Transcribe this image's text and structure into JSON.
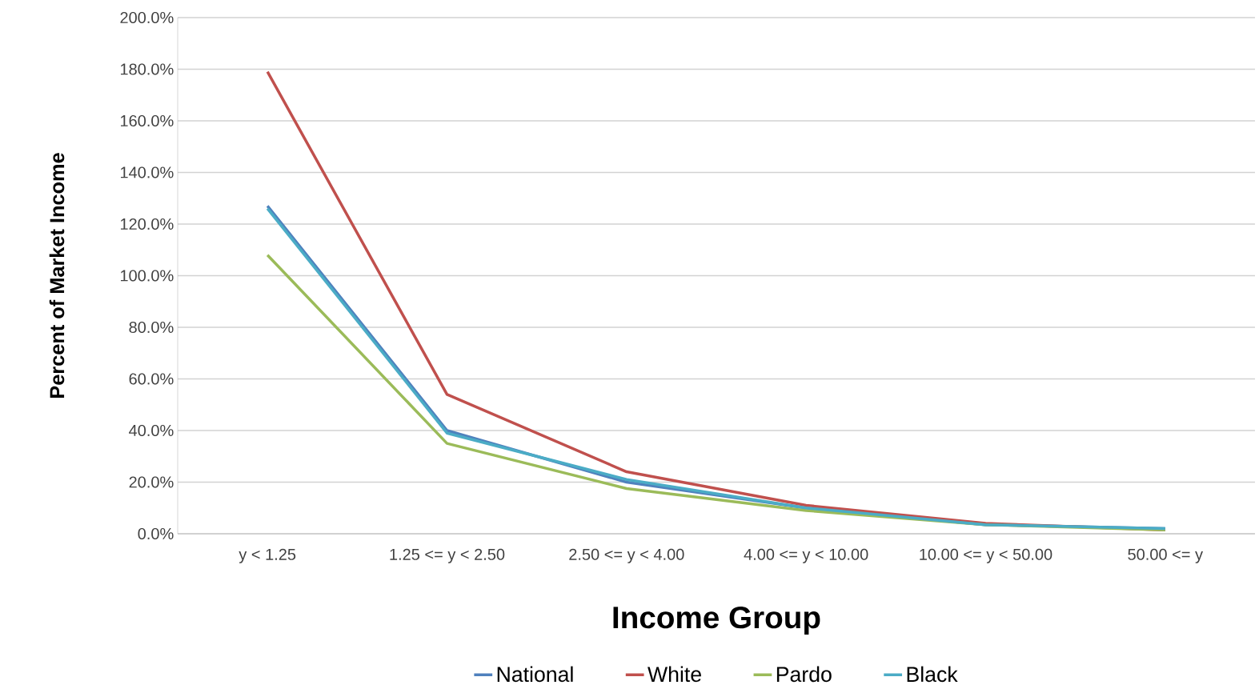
{
  "chart_data": {
    "type": "line",
    "xlabel": "Income Group",
    "ylabel": "Percent of Market Income",
    "categories": [
      "y < 1.25",
      "1.25 <= y < 2.50",
      "2.50 <= y < 4.00",
      "4.00 <= y < 10.00",
      "10.00 <= y < 50.00",
      "50.00 <= y"
    ],
    "series": [
      {
        "name": "National",
        "color": "#4f81bd",
        "values": [
          127,
          40,
          20,
          10,
          3.5,
          2
        ]
      },
      {
        "name": "White",
        "color": "#c0504d",
        "values": [
          179,
          54,
          24,
          11,
          4,
          1.5
        ]
      },
      {
        "name": "Pardo",
        "color": "#9bbb59",
        "values": [
          108,
          35,
          17.5,
          9,
          3.5,
          1.5
        ]
      },
      {
        "name": "Black",
        "color": "#4bacc6",
        "values": [
          126,
          39,
          21,
          10,
          3.5,
          2
        ]
      }
    ],
    "ylim": [
      0,
      200
    ],
    "yticks": [
      {
        "value": 0,
        "label": "0.0%"
      },
      {
        "value": 20,
        "label": "20.0%"
      },
      {
        "value": 40,
        "label": "40.0%"
      },
      {
        "value": 60,
        "label": "60.0%"
      },
      {
        "value": 80,
        "label": "80.0%"
      },
      {
        "value": 100,
        "label": "100.0%"
      },
      {
        "value": 120,
        "label": "120.0%"
      },
      {
        "value": 140,
        "label": "140.0%"
      },
      {
        "value": 160,
        "label": "160.0%"
      },
      {
        "value": 180,
        "label": "180.0%"
      },
      {
        "value": 200,
        "label": "200.0%"
      }
    ],
    "grid": "y",
    "legend": "bottom",
    "marker": "none",
    "line_style": "solid"
  }
}
